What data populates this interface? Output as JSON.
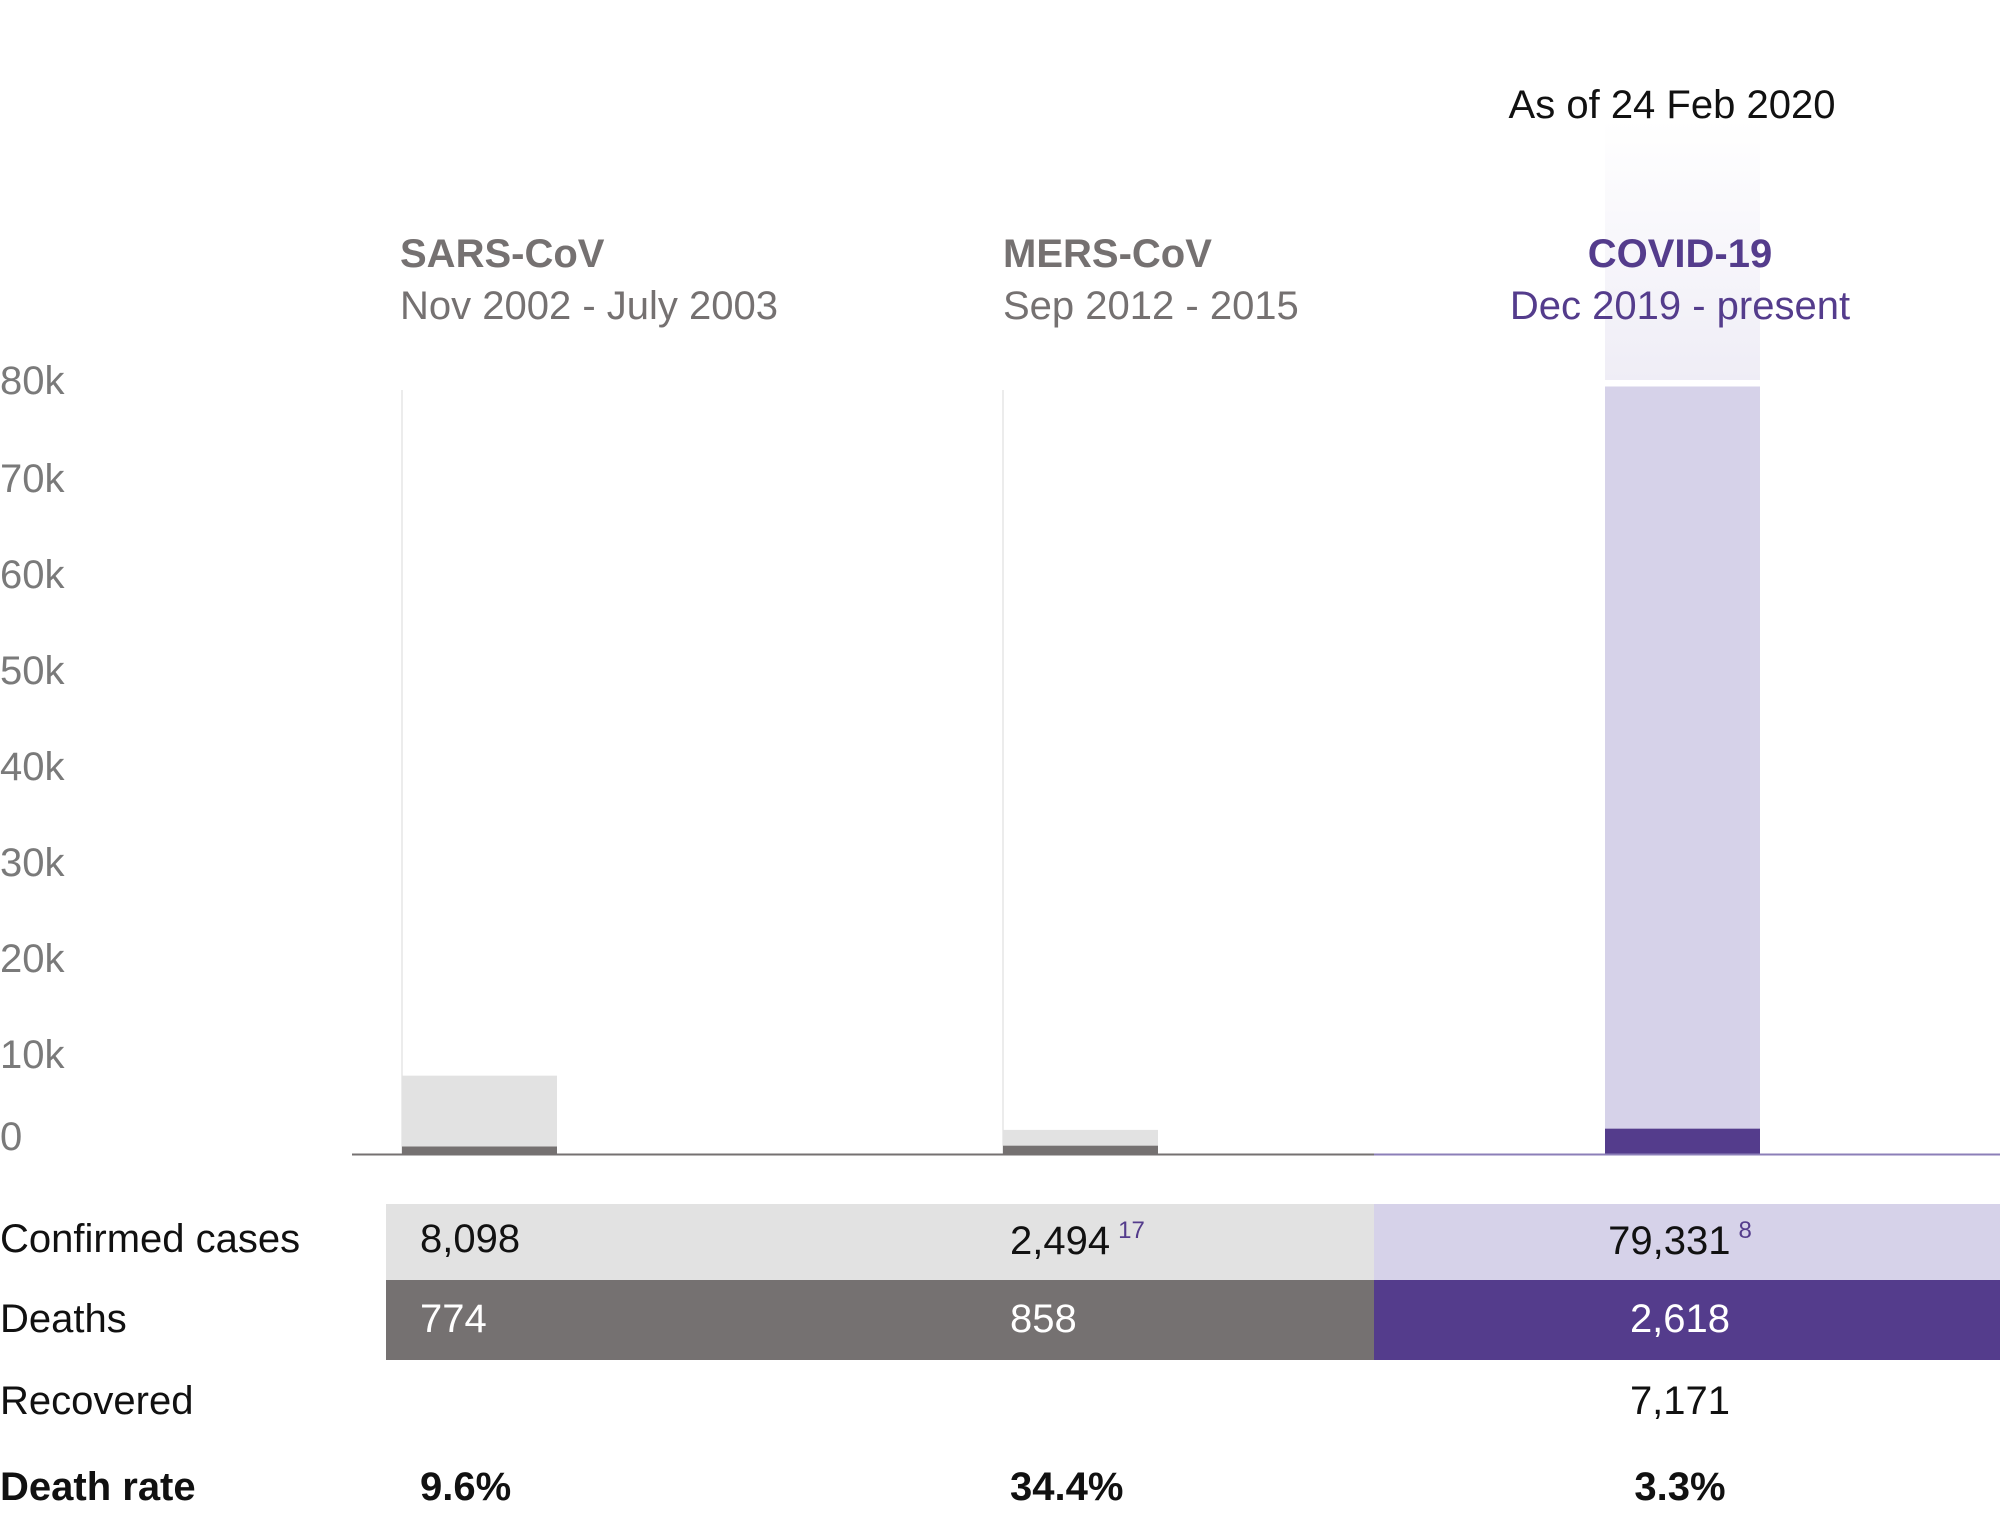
{
  "chart_data": {
    "type": "bar",
    "annotation": "As of 24 Feb 2020",
    "y_ticks": [
      "0",
      "10k",
      "20k",
      "30k",
      "40k",
      "50k",
      "60k",
      "70k",
      "80k"
    ],
    "ylim": [
      0,
      80000
    ],
    "categories": [
      {
        "name": "SARS-CoV",
        "period": "Nov 2002 - July 2003"
      },
      {
        "name": "MERS-CoV",
        "period": "Sep 2012 - 2015"
      },
      {
        "name": "COVID-19",
        "period": "Dec 2019 - present"
      }
    ],
    "series": [
      {
        "name": "Confirmed cases",
        "values": [
          8098,
          2494,
          79331
        ]
      },
      {
        "name": "Deaths",
        "values": [
          774,
          858,
          2618
        ]
      }
    ],
    "colors": {
      "grey_cases": "#e2e2e2",
      "grey_deaths": "#757171",
      "purple_cases": "#d6d2e9",
      "purple_deaths": "#543c8c",
      "purple_fade": "#efedf6"
    }
  },
  "table": {
    "row_labels": {
      "confirmed": "Confirmed cases",
      "deaths": "Deaths",
      "recovered": "Recovered",
      "death_rate": "Death rate"
    },
    "sars": {
      "confirmed": "8,098",
      "deaths": "774",
      "death_rate": "9.6%"
    },
    "mers": {
      "confirmed": "2,494",
      "confirmed_ref": "17",
      "deaths": "858",
      "death_rate": "34.4%"
    },
    "covid": {
      "confirmed": "79,331",
      "confirmed_ref": "8",
      "deaths": "2,618",
      "recovered": "7,171",
      "death_rate": "3.3%"
    }
  }
}
